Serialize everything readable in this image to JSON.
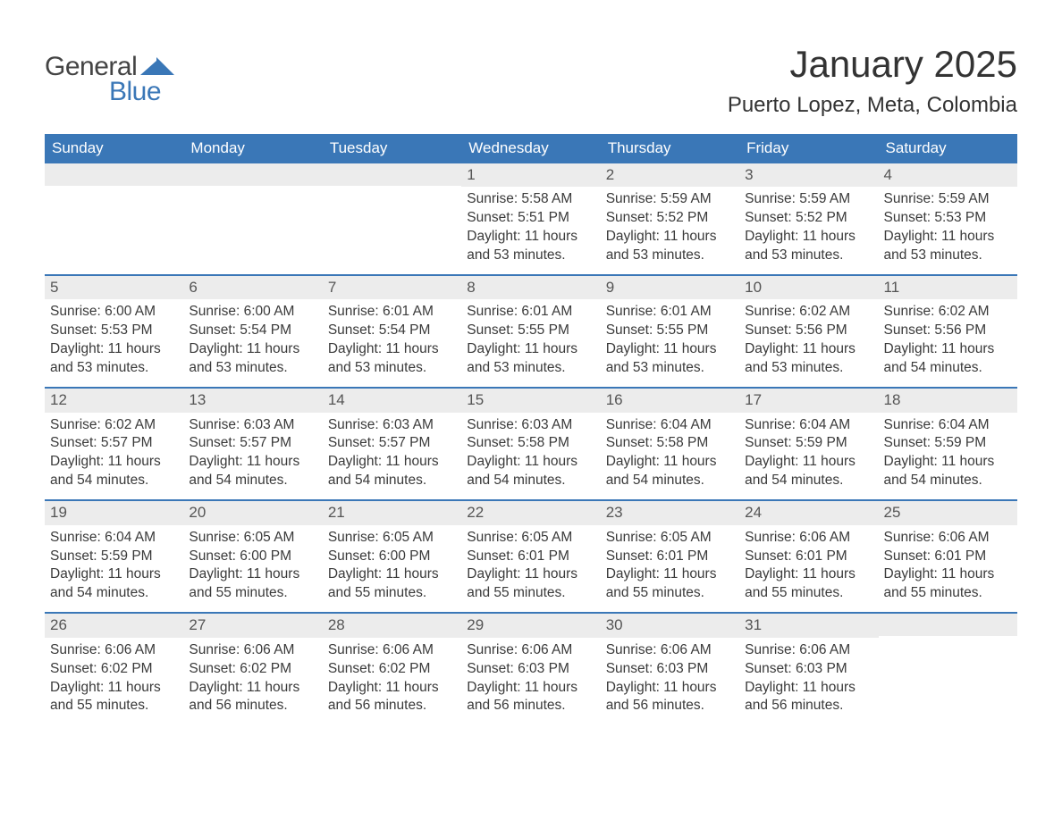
{
  "brand": {
    "word1": "General",
    "word2": "Blue",
    "word1_color": "#444444",
    "word2_color": "#3a77b7",
    "shape_color": "#3a77b7"
  },
  "title": {
    "month_year": "January 2025",
    "location": "Puerto Lopez, Meta, Colombia",
    "title_fontsize": 42,
    "location_fontsize": 24,
    "text_color": "#333333"
  },
  "calendar": {
    "header_bg": "#3a77b7",
    "header_text_color": "#ffffff",
    "row_divider_color": "#3a77b7",
    "daynum_bg": "#ececec",
    "daynum_color": "#555555",
    "body_text_color": "#3a3a3a",
    "background_color": "#ffffff",
    "columns": 7,
    "dow": [
      "Sunday",
      "Monday",
      "Tuesday",
      "Wednesday",
      "Thursday",
      "Friday",
      "Saturday"
    ],
    "labels": {
      "sunrise_prefix": "Sunrise: ",
      "sunset_prefix": "Sunset: ",
      "daylight_prefix": "Daylight: "
    },
    "weeks": [
      [
        {
          "day": "",
          "sunrise": "",
          "sunset": "",
          "daylight1": "",
          "daylight2": ""
        },
        {
          "day": "",
          "sunrise": "",
          "sunset": "",
          "daylight1": "",
          "daylight2": ""
        },
        {
          "day": "",
          "sunrise": "",
          "sunset": "",
          "daylight1": "",
          "daylight2": ""
        },
        {
          "day": "1",
          "sunrise": "Sunrise: 5:58 AM",
          "sunset": "Sunset: 5:51 PM",
          "daylight1": "Daylight: 11 hours",
          "daylight2": "and 53 minutes."
        },
        {
          "day": "2",
          "sunrise": "Sunrise: 5:59 AM",
          "sunset": "Sunset: 5:52 PM",
          "daylight1": "Daylight: 11 hours",
          "daylight2": "and 53 minutes."
        },
        {
          "day": "3",
          "sunrise": "Sunrise: 5:59 AM",
          "sunset": "Sunset: 5:52 PM",
          "daylight1": "Daylight: 11 hours",
          "daylight2": "and 53 minutes."
        },
        {
          "day": "4",
          "sunrise": "Sunrise: 5:59 AM",
          "sunset": "Sunset: 5:53 PM",
          "daylight1": "Daylight: 11 hours",
          "daylight2": "and 53 minutes."
        }
      ],
      [
        {
          "day": "5",
          "sunrise": "Sunrise: 6:00 AM",
          "sunset": "Sunset: 5:53 PM",
          "daylight1": "Daylight: 11 hours",
          "daylight2": "and 53 minutes."
        },
        {
          "day": "6",
          "sunrise": "Sunrise: 6:00 AM",
          "sunset": "Sunset: 5:54 PM",
          "daylight1": "Daylight: 11 hours",
          "daylight2": "and 53 minutes."
        },
        {
          "day": "7",
          "sunrise": "Sunrise: 6:01 AM",
          "sunset": "Sunset: 5:54 PM",
          "daylight1": "Daylight: 11 hours",
          "daylight2": "and 53 minutes."
        },
        {
          "day": "8",
          "sunrise": "Sunrise: 6:01 AM",
          "sunset": "Sunset: 5:55 PM",
          "daylight1": "Daylight: 11 hours",
          "daylight2": "and 53 minutes."
        },
        {
          "day": "9",
          "sunrise": "Sunrise: 6:01 AM",
          "sunset": "Sunset: 5:55 PM",
          "daylight1": "Daylight: 11 hours",
          "daylight2": "and 53 minutes."
        },
        {
          "day": "10",
          "sunrise": "Sunrise: 6:02 AM",
          "sunset": "Sunset: 5:56 PM",
          "daylight1": "Daylight: 11 hours",
          "daylight2": "and 53 minutes."
        },
        {
          "day": "11",
          "sunrise": "Sunrise: 6:02 AM",
          "sunset": "Sunset: 5:56 PM",
          "daylight1": "Daylight: 11 hours",
          "daylight2": "and 54 minutes."
        }
      ],
      [
        {
          "day": "12",
          "sunrise": "Sunrise: 6:02 AM",
          "sunset": "Sunset: 5:57 PM",
          "daylight1": "Daylight: 11 hours",
          "daylight2": "and 54 minutes."
        },
        {
          "day": "13",
          "sunrise": "Sunrise: 6:03 AM",
          "sunset": "Sunset: 5:57 PM",
          "daylight1": "Daylight: 11 hours",
          "daylight2": "and 54 minutes."
        },
        {
          "day": "14",
          "sunrise": "Sunrise: 6:03 AM",
          "sunset": "Sunset: 5:57 PM",
          "daylight1": "Daylight: 11 hours",
          "daylight2": "and 54 minutes."
        },
        {
          "day": "15",
          "sunrise": "Sunrise: 6:03 AM",
          "sunset": "Sunset: 5:58 PM",
          "daylight1": "Daylight: 11 hours",
          "daylight2": "and 54 minutes."
        },
        {
          "day": "16",
          "sunrise": "Sunrise: 6:04 AM",
          "sunset": "Sunset: 5:58 PM",
          "daylight1": "Daylight: 11 hours",
          "daylight2": "and 54 minutes."
        },
        {
          "day": "17",
          "sunrise": "Sunrise: 6:04 AM",
          "sunset": "Sunset: 5:59 PM",
          "daylight1": "Daylight: 11 hours",
          "daylight2": "and 54 minutes."
        },
        {
          "day": "18",
          "sunrise": "Sunrise: 6:04 AM",
          "sunset": "Sunset: 5:59 PM",
          "daylight1": "Daylight: 11 hours",
          "daylight2": "and 54 minutes."
        }
      ],
      [
        {
          "day": "19",
          "sunrise": "Sunrise: 6:04 AM",
          "sunset": "Sunset: 5:59 PM",
          "daylight1": "Daylight: 11 hours",
          "daylight2": "and 54 minutes."
        },
        {
          "day": "20",
          "sunrise": "Sunrise: 6:05 AM",
          "sunset": "Sunset: 6:00 PM",
          "daylight1": "Daylight: 11 hours",
          "daylight2": "and 55 minutes."
        },
        {
          "day": "21",
          "sunrise": "Sunrise: 6:05 AM",
          "sunset": "Sunset: 6:00 PM",
          "daylight1": "Daylight: 11 hours",
          "daylight2": "and 55 minutes."
        },
        {
          "day": "22",
          "sunrise": "Sunrise: 6:05 AM",
          "sunset": "Sunset: 6:01 PM",
          "daylight1": "Daylight: 11 hours",
          "daylight2": "and 55 minutes."
        },
        {
          "day": "23",
          "sunrise": "Sunrise: 6:05 AM",
          "sunset": "Sunset: 6:01 PM",
          "daylight1": "Daylight: 11 hours",
          "daylight2": "and 55 minutes."
        },
        {
          "day": "24",
          "sunrise": "Sunrise: 6:06 AM",
          "sunset": "Sunset: 6:01 PM",
          "daylight1": "Daylight: 11 hours",
          "daylight2": "and 55 minutes."
        },
        {
          "day": "25",
          "sunrise": "Sunrise: 6:06 AM",
          "sunset": "Sunset: 6:01 PM",
          "daylight1": "Daylight: 11 hours",
          "daylight2": "and 55 minutes."
        }
      ],
      [
        {
          "day": "26",
          "sunrise": "Sunrise: 6:06 AM",
          "sunset": "Sunset: 6:02 PM",
          "daylight1": "Daylight: 11 hours",
          "daylight2": "and 55 minutes."
        },
        {
          "day": "27",
          "sunrise": "Sunrise: 6:06 AM",
          "sunset": "Sunset: 6:02 PM",
          "daylight1": "Daylight: 11 hours",
          "daylight2": "and 56 minutes."
        },
        {
          "day": "28",
          "sunrise": "Sunrise: 6:06 AM",
          "sunset": "Sunset: 6:02 PM",
          "daylight1": "Daylight: 11 hours",
          "daylight2": "and 56 minutes."
        },
        {
          "day": "29",
          "sunrise": "Sunrise: 6:06 AM",
          "sunset": "Sunset: 6:03 PM",
          "daylight1": "Daylight: 11 hours",
          "daylight2": "and 56 minutes."
        },
        {
          "day": "30",
          "sunrise": "Sunrise: 6:06 AM",
          "sunset": "Sunset: 6:03 PM",
          "daylight1": "Daylight: 11 hours",
          "daylight2": "and 56 minutes."
        },
        {
          "day": "31",
          "sunrise": "Sunrise: 6:06 AM",
          "sunset": "Sunset: 6:03 PM",
          "daylight1": "Daylight: 11 hours",
          "daylight2": "and 56 minutes."
        },
        {
          "day": "",
          "sunrise": "",
          "sunset": "",
          "daylight1": "",
          "daylight2": ""
        }
      ]
    ]
  }
}
